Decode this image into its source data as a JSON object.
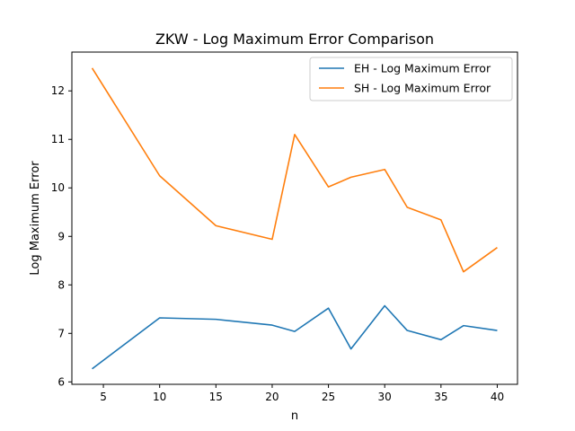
{
  "chart_data": {
    "type": "line",
    "title": "ZKW - Log Maximum Error Comparison",
    "xlabel": "n",
    "ylabel": "Log Maximum Error",
    "x": [
      4,
      10,
      15,
      20,
      22,
      25,
      27,
      30,
      32,
      35,
      37,
      40
    ],
    "xlim": [
      2.2,
      41.8
    ],
    "ylim": [
      5.95,
      12.8
    ],
    "xticks": [
      5,
      10,
      15,
      20,
      25,
      30,
      35,
      40
    ],
    "yticks": [
      6,
      7,
      8,
      9,
      10,
      11,
      12
    ],
    "grid": false,
    "legend_position": "top-right",
    "series": [
      {
        "name": "EH - Log Maximum Error",
        "color": "#1f77b4",
        "values": [
          6.27,
          7.32,
          7.29,
          7.17,
          7.04,
          7.52,
          6.68,
          7.57,
          7.06,
          6.87,
          7.16,
          7.06
        ]
      },
      {
        "name": "SH - Log Maximum Error",
        "color": "#ff7f0e",
        "values": [
          12.47,
          10.25,
          9.22,
          8.94,
          11.1,
          10.02,
          10.22,
          10.38,
          9.6,
          9.34,
          8.27,
          8.77
        ]
      }
    ]
  }
}
